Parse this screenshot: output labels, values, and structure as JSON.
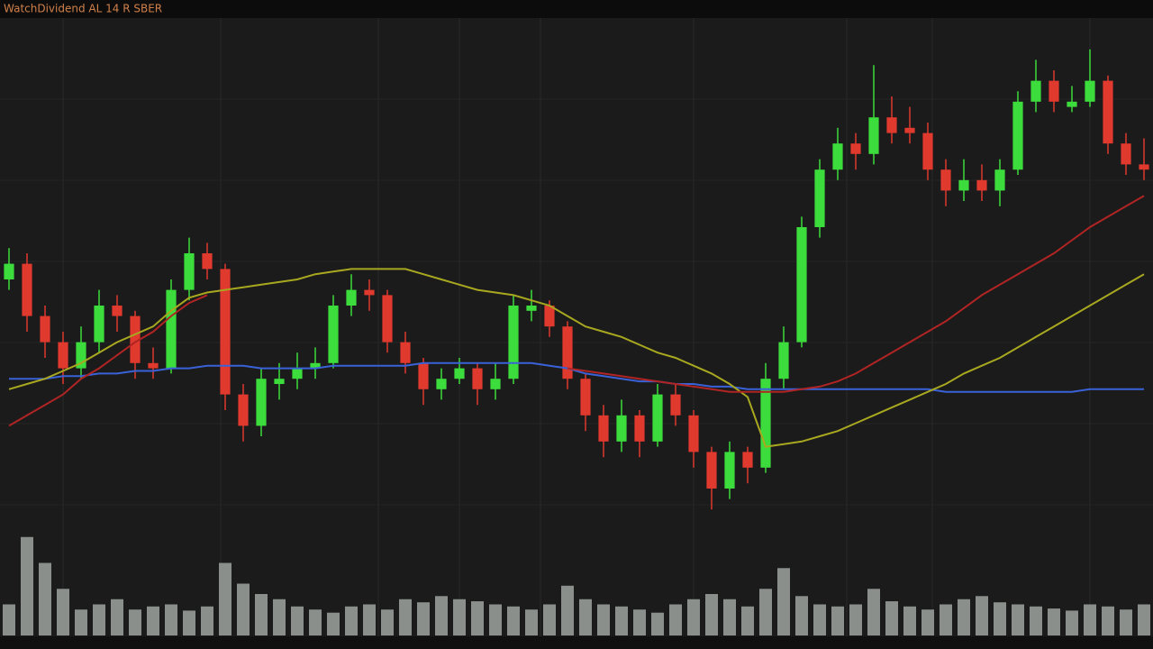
{
  "chart_data": {
    "type": "candlestick",
    "title": "WatchDividend AL 14 R SBER",
    "ylim": [
      0,
      100
    ],
    "grid": true,
    "up_color": "#3ddc3d",
    "down_color": "#e0392e",
    "ohlc": [
      [
        50,
        56,
        48,
        53
      ],
      [
        53,
        55,
        40,
        43
      ],
      [
        43,
        45,
        35,
        38
      ],
      [
        38,
        40,
        30,
        33
      ],
      [
        33,
        41,
        31,
        38
      ],
      [
        38,
        48,
        36,
        45
      ],
      [
        45,
        47,
        40,
        43
      ],
      [
        43,
        44,
        31,
        34
      ],
      [
        34,
        37,
        31,
        33
      ],
      [
        33,
        50,
        32,
        48
      ],
      [
        48,
        58,
        46,
        55
      ],
      [
        55,
        57,
        50,
        52
      ],
      [
        52,
        53,
        25,
        28
      ],
      [
        28,
        30,
        19,
        22
      ],
      [
        22,
        33,
        20,
        31
      ],
      [
        30,
        34,
        27,
        31
      ],
      [
        31,
        36,
        29,
        33
      ],
      [
        33,
        37,
        31,
        34
      ],
      [
        34,
        47,
        33,
        45
      ],
      [
        45,
        51,
        43,
        48
      ],
      [
        48,
        50,
        44,
        47
      ],
      [
        47,
        48,
        36,
        38
      ],
      [
        38,
        40,
        32,
        34
      ],
      [
        34,
        35,
        26,
        29
      ],
      [
        29,
        33,
        27,
        31
      ],
      [
        31,
        35,
        30,
        33
      ],
      [
        33,
        34,
        26,
        29
      ],
      [
        29,
        34,
        27,
        31
      ],
      [
        31,
        47,
        30,
        45
      ],
      [
        44,
        48,
        42,
        45
      ],
      [
        45,
        46,
        39,
        41
      ],
      [
        41,
        42,
        29,
        31
      ],
      [
        31,
        32,
        21,
        24
      ],
      [
        24,
        26,
        16,
        19
      ],
      [
        19,
        27,
        17,
        24
      ],
      [
        24,
        25,
        16,
        19
      ],
      [
        19,
        30,
        18,
        28
      ],
      [
        28,
        30,
        22,
        24
      ],
      [
        24,
        25,
        14,
        17
      ],
      [
        17,
        18,
        6,
        10
      ],
      [
        10,
        19,
        8,
        17
      ],
      [
        17,
        18,
        11,
        14
      ],
      [
        14,
        34,
        13,
        31
      ],
      [
        31,
        41,
        29,
        38
      ],
      [
        38,
        62,
        37,
        60
      ],
      [
        60,
        73,
        58,
        71
      ],
      [
        71,
        79,
        69,
        76
      ],
      [
        76,
        78,
        71,
        74
      ],
      [
        74,
        91,
        72,
        81
      ],
      [
        81,
        85,
        76,
        78
      ],
      [
        79,
        83,
        76,
        78
      ],
      [
        78,
        80,
        69,
        71
      ],
      [
        71,
        73,
        64,
        67
      ],
      [
        67,
        73,
        65,
        69
      ],
      [
        69,
        72,
        65,
        67
      ],
      [
        67,
        73,
        64,
        71
      ],
      [
        71,
        86,
        70,
        84
      ],
      [
        84,
        92,
        82,
        88
      ],
      [
        88,
        90,
        82,
        84
      ],
      [
        83,
        87,
        82,
        84
      ],
      [
        84,
        94,
        83,
        88
      ],
      [
        88,
        89,
        74,
        76
      ],
      [
        76,
        78,
        70,
        72
      ],
      [
        72,
        77,
        69,
        71
      ]
    ],
    "lines": [
      {
        "color": "#3a62d8",
        "values": [
          31,
          31,
          31,
          31.5,
          31.5,
          32,
          32,
          32.5,
          32.5,
          33,
          33,
          33.5,
          33.5,
          33.5,
          33,
          33,
          33,
          33,
          33.5,
          33.5,
          33.5,
          33.5,
          33.5,
          34,
          34,
          34,
          34,
          34,
          34,
          34,
          33.5,
          33,
          32,
          31.5,
          31,
          30.5,
          30.5,
          30,
          30,
          29.5,
          29.5,
          29,
          29,
          29,
          29,
          29,
          29,
          29,
          29,
          29,
          29,
          29,
          28.5,
          28.5,
          28.5,
          28.5,
          28.5,
          28.5,
          28.5,
          28.5,
          29,
          29,
          29,
          29
        ]
      },
      {
        "color": "#a8a820",
        "values": [
          29,
          30,
          31,
          32.5,
          34,
          36,
          38,
          39.5,
          41,
          44,
          46.5,
          47.5,
          48,
          48.5,
          49,
          49.5,
          50,
          51,
          51.5,
          52,
          52,
          52,
          52,
          51,
          50,
          49,
          48,
          47.5,
          47,
          46,
          45,
          43,
          41,
          40,
          39,
          37.5,
          36,
          35,
          33.5,
          32,
          30,
          27.5,
          18,
          18.5,
          19,
          20,
          21,
          22.5,
          24,
          25.5,
          27,
          28.5,
          30,
          32,
          33.5,
          35,
          37,
          39,
          41,
          43,
          45,
          47,
          49,
          51
        ]
      },
      {
        "color": "#b02424",
        "values": [
          22,
          24,
          26,
          28,
          31,
          33,
          35.5,
          38,
          40,
          43,
          45.5,
          47,
          null,
          null,
          null,
          null,
          null,
          null,
          null,
          null,
          null,
          null,
          null,
          null,
          null,
          null,
          null,
          null,
          null,
          null,
          null,
          33,
          32.5,
          32,
          31.5,
          31,
          30.5,
          30,
          29.5,
          29,
          28.5,
          28.5,
          28.5,
          28.5,
          29,
          29.5,
          30.5,
          32,
          34,
          36,
          38,
          40,
          42,
          44.5,
          47,
          49,
          51,
          53,
          55,
          57.5,
          60,
          62,
          64,
          66
        ]
      }
    ],
    "volume": {
      "color": "#8a8f8c",
      "ylim": [
        0,
        100
      ],
      "values": [
        30,
        95,
        70,
        45,
        25,
        30,
        35,
        25,
        28,
        30,
        24,
        28,
        70,
        50,
        40,
        35,
        28,
        25,
        22,
        28,
        30,
        25,
        35,
        32,
        38,
        35,
        33,
        30,
        28,
        25,
        30,
        48,
        35,
        30,
        28,
        25,
        22,
        30,
        35,
        40,
        35,
        28,
        45,
        65,
        38,
        30,
        28,
        30,
        45,
        33,
        28,
        25,
        30,
        35,
        38,
        32,
        30,
        28,
        26,
        24,
        30,
        28,
        25,
        30
      ]
    }
  }
}
